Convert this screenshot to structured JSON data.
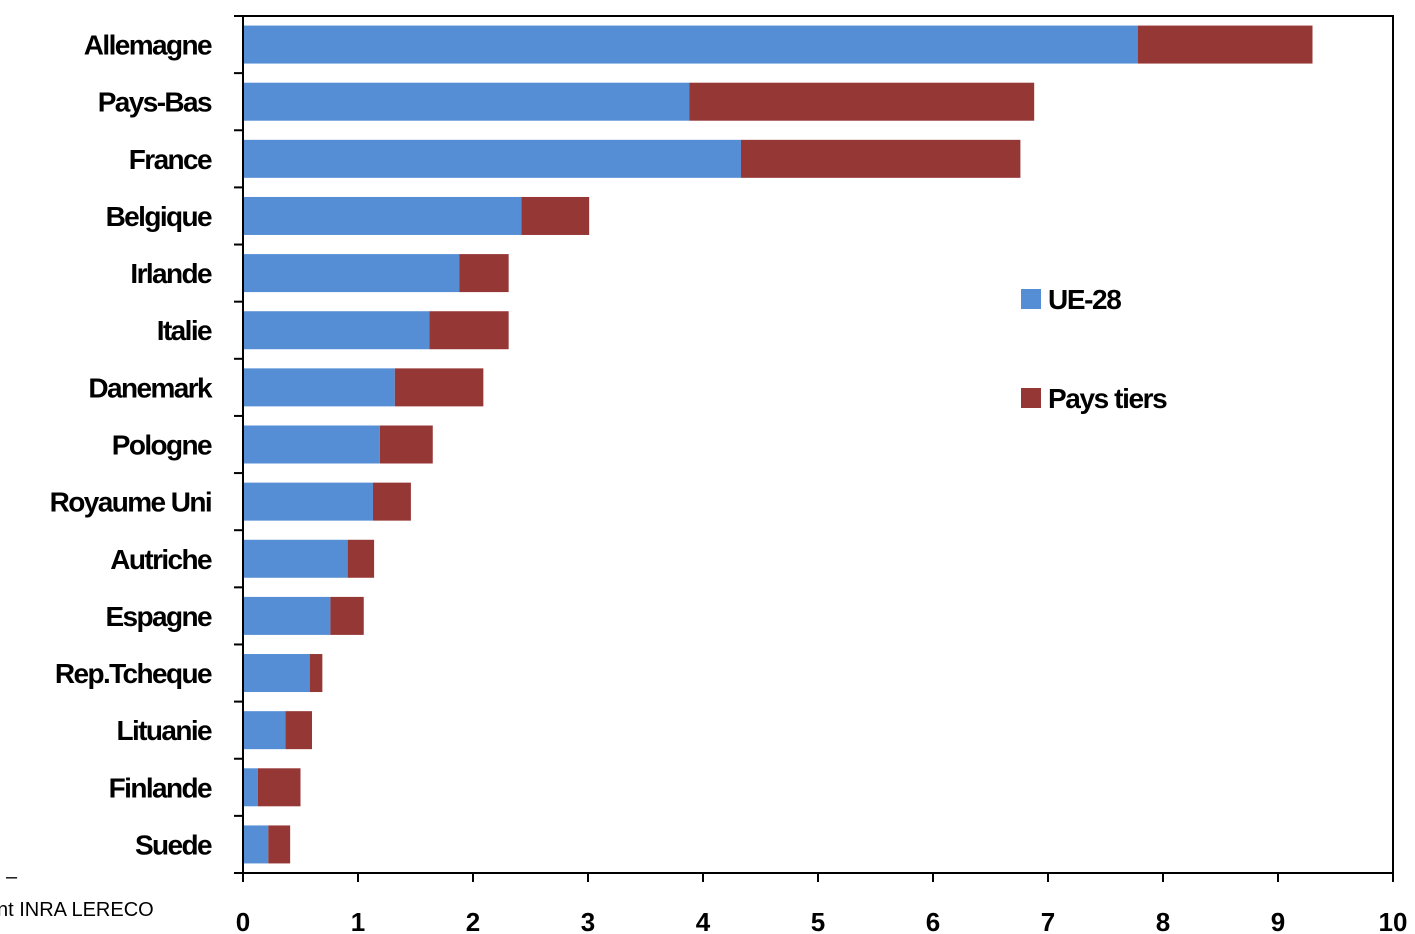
{
  "chart_data": {
    "type": "bar",
    "orientation": "horizontal",
    "stacked": true,
    "categories": [
      "Allemagne",
      "Pays-Bas",
      "France",
      "Belgique",
      "Irlande",
      "Italie",
      "Danemark",
      "Pologne",
      "Royaume Uni",
      "Autriche",
      "Espagne",
      "Rep.Tcheque",
      "Lituanie",
      "Finlande",
      "Suede"
    ],
    "series": [
      {
        "name": "UE-28",
        "color": "#558ED5",
        "values": [
          7.78,
          3.88,
          4.33,
          2.42,
          1.88,
          1.62,
          1.32,
          1.19,
          1.13,
          0.91,
          0.76,
          0.58,
          0.37,
          0.13,
          0.22
        ]
      },
      {
        "name": "Pays tiers",
        "color": "#953735",
        "values": [
          1.52,
          3.0,
          2.43,
          0.59,
          0.43,
          0.69,
          0.77,
          0.46,
          0.33,
          0.23,
          0.29,
          0.11,
          0.23,
          0.37,
          0.19
        ]
      }
    ],
    "xlim": [
      0,
      10
    ],
    "xticks": [
      "0",
      "1",
      "2",
      "3",
      "4",
      "5",
      "6",
      "7",
      "8",
      "9",
      "10"
    ],
    "xlabel": "",
    "ylabel": "",
    "grid": false,
    "legend_position": "right"
  },
  "footer_text": "nt INRA LERECO",
  "footer_dash": "–"
}
